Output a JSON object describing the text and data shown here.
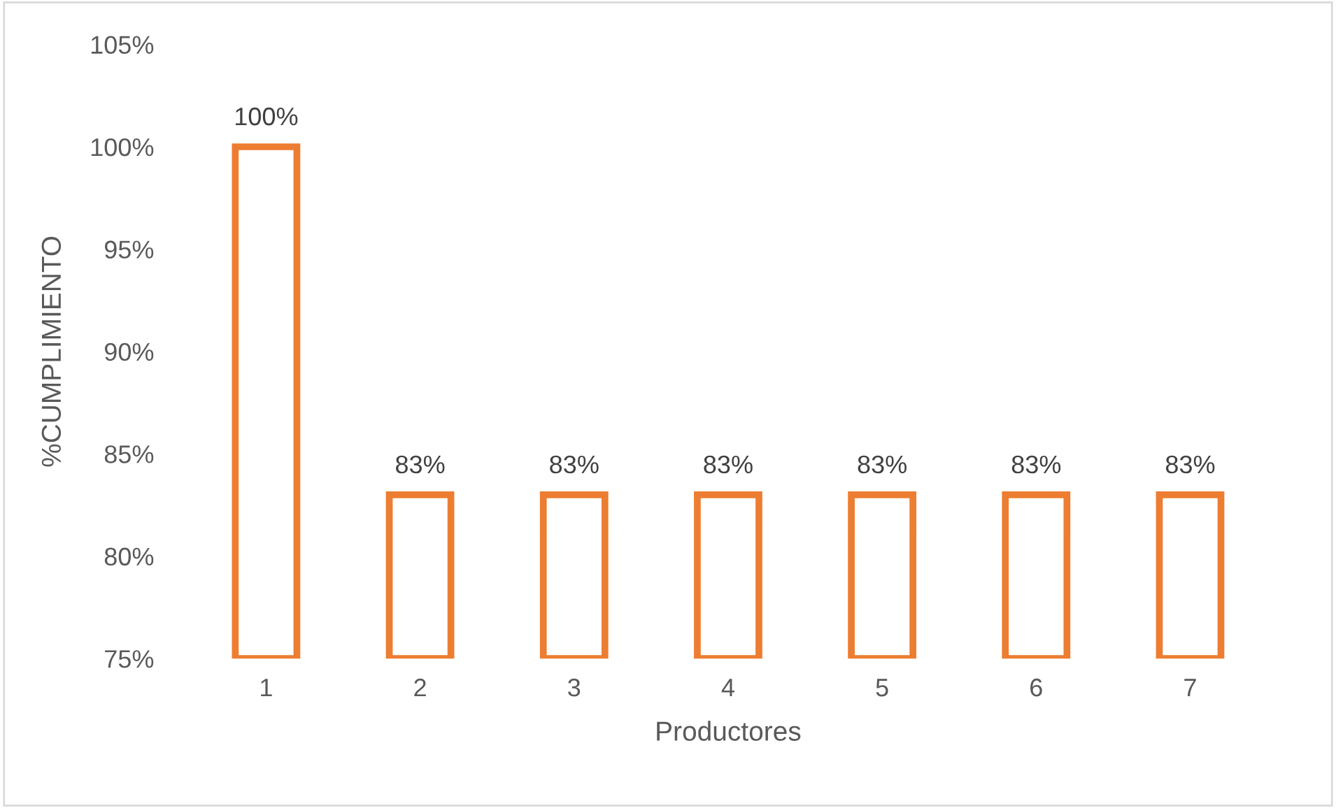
{
  "chart_data": {
    "type": "bar",
    "xlabel": "Productores",
    "ylabel": "%CUMPLIMIENTO",
    "categories": [
      "1",
      "2",
      "3",
      "4",
      "5",
      "6",
      "7"
    ],
    "values": [
      100,
      83,
      83,
      83,
      83,
      83,
      83
    ],
    "value_labels": [
      "100%",
      "83%",
      "83%",
      "83%",
      "83%",
      "83%",
      "83%"
    ],
    "color": "#ed7d31",
    "ylim": [
      75,
      105
    ],
    "yticks": [
      {
        "value": 75,
        "label": "75%"
      },
      {
        "value": 80,
        "label": "80%"
      },
      {
        "value": 85,
        "label": "85%"
      },
      {
        "value": 90,
        "label": "90%"
      },
      {
        "value": 95,
        "label": "95%"
      },
      {
        "value": 100,
        "label": "100%"
      },
      {
        "value": 105,
        "label": "105%"
      }
    ],
    "grid": false,
    "legend": false
  }
}
